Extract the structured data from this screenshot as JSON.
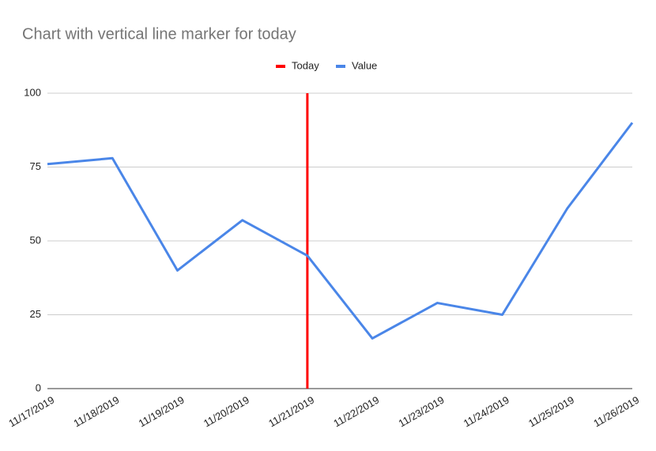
{
  "chart_data": {
    "type": "line",
    "title": "Chart with vertical line marker for today",
    "categories": [
      "11/17/2019",
      "11/18/2019",
      "11/19/2019",
      "11/20/2019",
      "11/21/2019",
      "11/22/2019",
      "11/23/2019",
      "11/24/2019",
      "11/25/2019",
      "11/26/2019"
    ],
    "series": [
      {
        "name": "Today",
        "type": "bar",
        "color": "#ff0000",
        "values": [
          null,
          null,
          null,
          null,
          100,
          null,
          null,
          null,
          null,
          null
        ]
      },
      {
        "name": "Value",
        "type": "line",
        "color": "#4a86e8",
        "values": [
          76,
          78,
          40,
          57,
          45,
          17,
          29,
          25,
          61,
          90
        ]
      }
    ],
    "ylim": [
      0,
      100
    ],
    "yticks": [
      0,
      25,
      50,
      75,
      100
    ],
    "grid": true,
    "legend": "top"
  }
}
